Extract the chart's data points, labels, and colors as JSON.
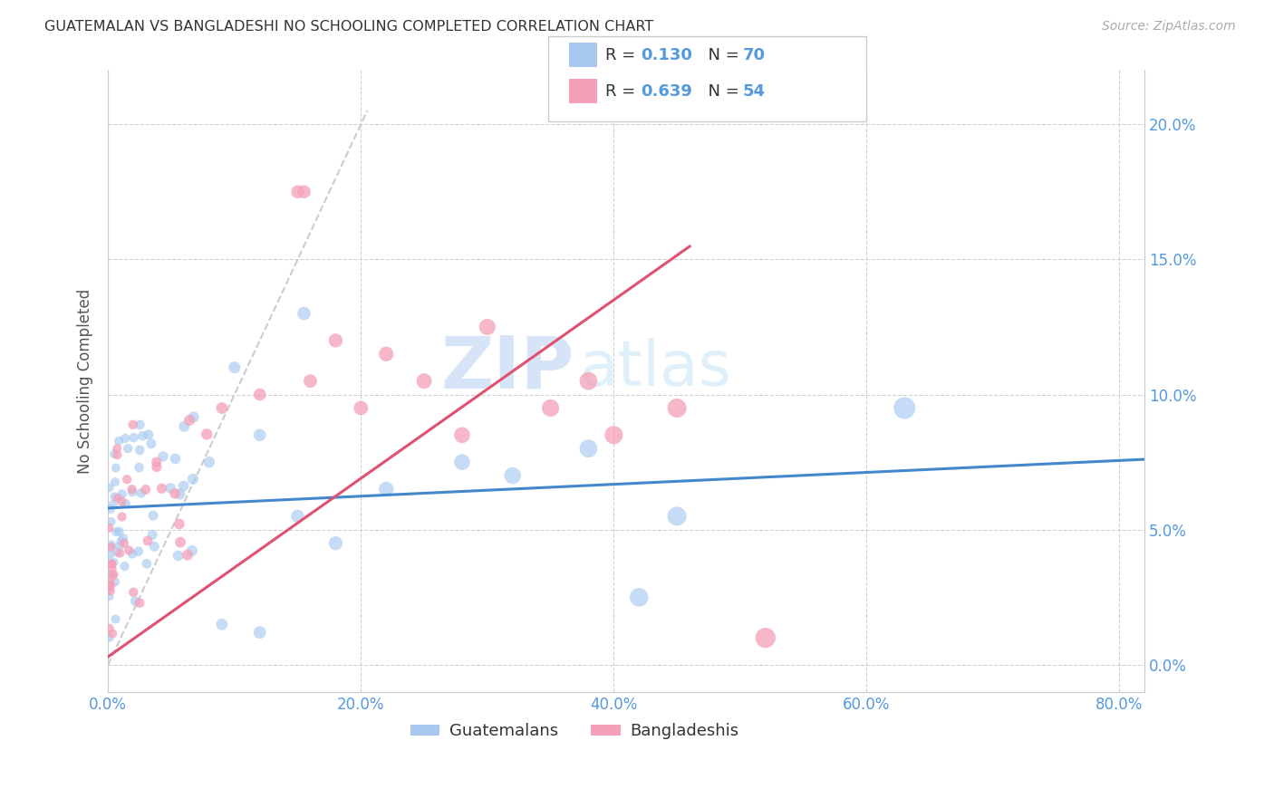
{
  "title": "GUATEMALAN VS BANGLADESHI NO SCHOOLING COMPLETED CORRELATION CHART",
  "source": "Source: ZipAtlas.com",
  "ylabel": "No Schooling Completed",
  "xlabel_ticks": [
    "0.0%",
    "20.0%",
    "40.0%",
    "60.0%",
    "80.0%"
  ],
  "ylabel_ticks_right": [
    "20.0%",
    "15.0%",
    "10.0%",
    "5.0%",
    "0.0%"
  ],
  "xlim": [
    0.0,
    0.82
  ],
  "ylim": [
    -0.01,
    0.22
  ],
  "guatemalan_color": "#a8c8f0",
  "bangladeshi_color": "#f4a0b8",
  "guatemalan_line_color": "#4488cc",
  "bangladeshi_line_color": "#e05070",
  "diagonal_color": "#cccccc",
  "R_guatemalan": 0.13,
  "N_guatemalan": 70,
  "R_bangladeshi": 0.639,
  "N_bangladeshi": 54,
  "watermark_zip": "ZIP",
  "watermark_atlas": "atlas",
  "legend_guatemalans": "Guatemalans",
  "legend_bangladeshis": "Bangladeshis",
  "guat_intercept": 0.058,
  "guat_slope": 0.022,
  "bang_intercept": 0.003,
  "bang_slope": 0.33,
  "bang_line_xmax": 0.46
}
